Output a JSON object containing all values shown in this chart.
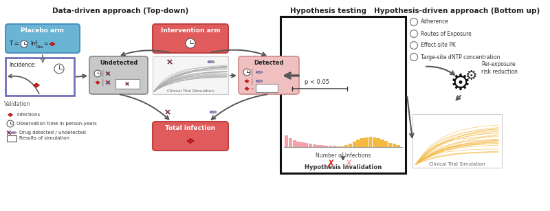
{
  "title_left": "Data-driven approach (Top-down)",
  "title_middle": "Hypothesis testing",
  "title_right": "Hypothesis-driven approach (Bottom up)",
  "bg_color": "#ffffff",
  "placebo_box_color": "#6ab4d4",
  "placebo_border_color": "#4a90c0",
  "intervention_box_color": "#e05c5c",
  "intervention_border_color": "#c04040",
  "incidence_border_color": "#7070bb",
  "undetected_box_color": "#b8b8b8",
  "undetected_border_color": "#888888",
  "detected_box_color": "#f0c0c0",
  "detected_border_color": "#cc8888",
  "total_infection_box_color": "#e05c5c",
  "total_infection_border_color": "#c04040",
  "pink_bars": [
    10.0,
    7.5,
    5.8,
    4.8,
    4.0,
    3.4,
    2.8,
    2.4,
    2.0,
    1.6,
    1.3,
    1.1,
    0.9,
    0.7
  ],
  "orange_bars": [
    0.8,
    1.5,
    2.8,
    4.5,
    6.2,
    7.8,
    8.5,
    8.8,
    8.5,
    7.8,
    6.5,
    5.2,
    3.8,
    2.8,
    2.0,
    1.4,
    0.9,
    0.5,
    0.3
  ],
  "pink_bar_color": "#f4a0a8",
  "orange_bar_color": "#f5b942",
  "legend_items_left": [
    "Infections",
    "Observation time in person-years",
    "Drug detected / undetected",
    "Results of simulation"
  ],
  "legend_items_right": [
    "Adherence",
    "Routes of Exposure",
    "Effect-site PK",
    "Targe-site dNTP concentration"
  ],
  "arrow_color": "#555555",
  "hypothesis_box_edge": "#111111",
  "simulation_line_color_orange": "#f5b942",
  "simulation_line_color_gray": "#aaaaaa",
  "gray_text": "#555555",
  "dark_text": "#222222",
  "red_icon": "#cc2222",
  "blue_icon": "#4466aa"
}
